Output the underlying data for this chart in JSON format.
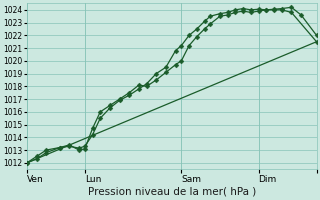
{
  "title": "",
  "xlabel": "Pression niveau de la mer( hPa )",
  "ylabel": "",
  "background_color": "#cce8e0",
  "plot_bg_color": "#cce8e0",
  "grid_color": "#88c4b8",
  "line_color": "#1a5c2a",
  "ylim": [
    1011.5,
    1024.5
  ],
  "xlim": [
    0,
    7.5
  ],
  "yticks": [
    1012,
    1013,
    1014,
    1015,
    1016,
    1017,
    1018,
    1019,
    1020,
    1021,
    1022,
    1023,
    1024
  ],
  "xtick_positions": [
    0.0,
    1.5,
    4.0,
    6.0,
    7.5
  ],
  "xtick_labels": [
    "Ven",
    "Lun",
    "Sam",
    "Dim",
    ""
  ],
  "vlines": [
    0.0,
    1.5,
    4.0,
    6.0,
    7.5
  ],
  "line1_x": [
    0.0,
    0.25,
    0.5,
    0.85,
    1.1,
    1.35,
    1.5,
    1.7,
    1.9,
    2.15,
    2.4,
    2.65,
    2.9,
    3.1,
    3.35,
    3.6,
    3.85,
    4.0,
    4.2,
    4.4,
    4.6,
    4.75,
    5.0,
    5.2,
    5.4,
    5.6,
    5.8,
    6.0,
    6.2,
    6.4,
    6.6,
    6.85,
    7.1,
    7.5
  ],
  "line1_y": [
    1012.0,
    1012.3,
    1012.8,
    1013.2,
    1013.3,
    1013.15,
    1013.3,
    1014.2,
    1015.5,
    1016.3,
    1016.9,
    1017.3,
    1017.8,
    1018.2,
    1019.0,
    1019.5,
    1020.8,
    1021.2,
    1022.0,
    1022.5,
    1023.1,
    1023.5,
    1023.7,
    1023.8,
    1024.0,
    1024.1,
    1024.0,
    1024.05,
    1024.0,
    1024.05,
    1024.1,
    1024.2,
    1023.6,
    1022.0
  ],
  "line2_x": [
    0.0,
    0.25,
    0.5,
    0.85,
    1.1,
    1.35,
    1.5,
    1.7,
    1.9,
    2.15,
    2.4,
    2.65,
    2.9,
    3.1,
    3.35,
    3.6,
    3.85,
    4.0,
    4.2,
    4.4,
    4.6,
    4.75,
    5.0,
    5.2,
    5.4,
    5.6,
    5.8,
    6.0,
    6.2,
    6.4,
    6.6,
    6.85,
    7.5
  ],
  "line2_y": [
    1012.0,
    1012.5,
    1013.0,
    1013.2,
    1013.4,
    1013.0,
    1013.1,
    1014.7,
    1016.0,
    1016.5,
    1017.0,
    1017.5,
    1018.1,
    1018.0,
    1018.5,
    1019.1,
    1019.7,
    1020.0,
    1021.2,
    1021.9,
    1022.5,
    1022.9,
    1023.5,
    1023.6,
    1023.8,
    1023.9,
    1023.8,
    1023.9,
    1024.0,
    1024.0,
    1024.0,
    1023.8,
    1021.5
  ],
  "line3_x": [
    0.0,
    7.5
  ],
  "line3_y": [
    1012.0,
    1021.5
  ],
  "marker": "D",
  "marker_size": 2.5,
  "linewidth": 0.9
}
